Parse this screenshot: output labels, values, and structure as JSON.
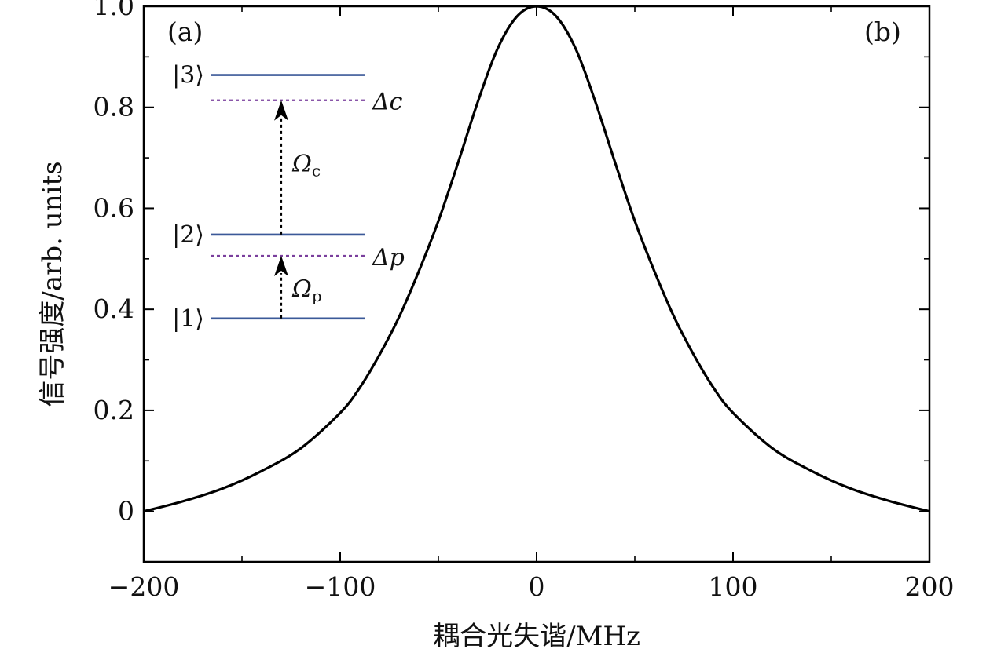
{
  "chart_data": {
    "type": "line",
    "xlabel": "耦合光失谐/MHz",
    "ylabel": "信号强度/arb. units",
    "xlim": [
      -200,
      200
    ],
    "ylim": [
      -0.1,
      1.0
    ],
    "x_ticks": [
      -200,
      -100,
      0,
      100,
      200
    ],
    "x_tick_labels": [
      "−200",
      "−100",
      "0",
      "100",
      "200"
    ],
    "y_ticks": [
      0,
      0.2,
      0.4,
      0.6,
      0.8,
      1.0
    ],
    "y_tick_labels": [
      "0",
      "0.2",
      "0.4",
      "0.6",
      "0.8",
      "1.0"
    ],
    "grid": false,
    "series": [
      {
        "x": [
          -200,
          -180,
          -160,
          -140,
          -120,
          -100,
          -90,
          -80,
          -70,
          -60,
          -50,
          -40,
          -30,
          -20,
          -10,
          0,
          10,
          20,
          30,
          40,
          50,
          60,
          70,
          80,
          90,
          100,
          120,
          140,
          160,
          180,
          200
        ],
        "y": [
          0.0,
          0.02,
          0.045,
          0.08,
          0.125,
          0.195,
          0.245,
          0.31,
          0.385,
          0.475,
          0.575,
          0.69,
          0.81,
          0.915,
          0.98,
          1.0,
          0.98,
          0.915,
          0.81,
          0.69,
          0.575,
          0.475,
          0.385,
          0.31,
          0.245,
          0.195,
          0.125,
          0.08,
          0.045,
          0.02,
          0.0
        ],
        "color": "#000000"
      }
    ],
    "panel_labels": [
      "(a)",
      "(b)"
    ],
    "inset": {
      "levels": [
        {
          "label": "|3⟩",
          "y": 0.864
        },
        {
          "label": "|2⟩",
          "y": 0.548
        },
        {
          "label": "|1⟩",
          "y": 0.382
        }
      ],
      "virtual_levels": [
        {
          "label": "Δc",
          "y": 0.814
        },
        {
          "label": "Δp",
          "y": 0.506
        }
      ],
      "transitions": [
        {
          "symbol": "Ω",
          "sub": "c"
        },
        {
          "symbol": "Ω",
          "sub": "p"
        }
      ],
      "level_color": "#3b5998",
      "virtual_color": "#7a3f9d",
      "arrow_color": "#000000"
    }
  }
}
